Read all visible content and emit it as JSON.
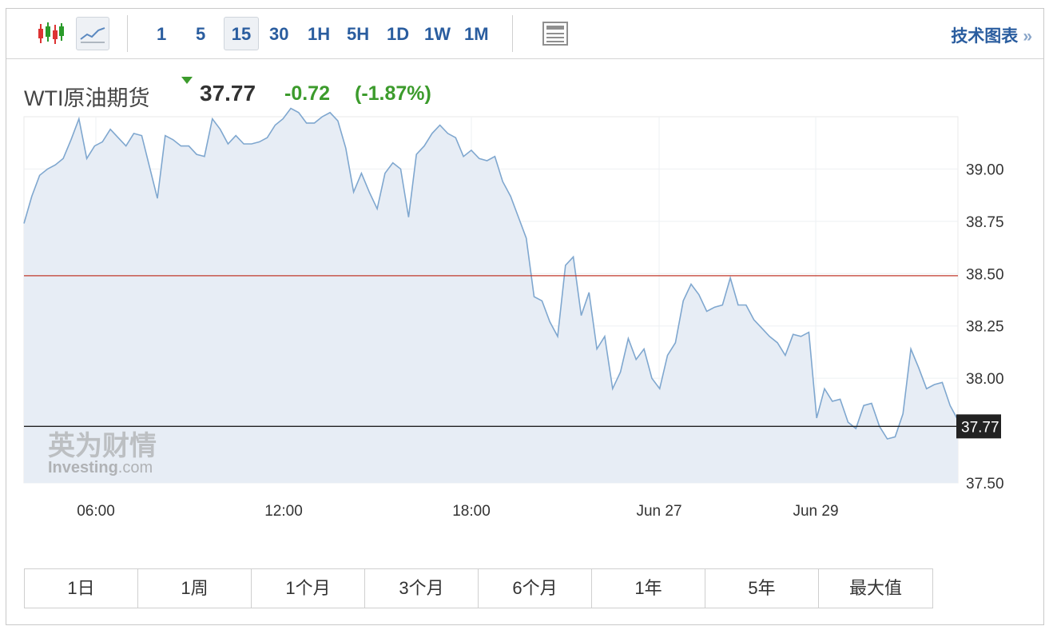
{
  "toolbar": {
    "intervals": [
      "1",
      "5",
      "15",
      "30",
      "1H",
      "5H",
      "1D",
      "1W",
      "1M"
    ],
    "selected_interval": "15",
    "tech_chart_label": "技术图表",
    "tech_chart_arrow": "»"
  },
  "quote": {
    "name": "WTI原油期货",
    "price": "37.77",
    "change": "-0.72",
    "change_pct": "(-1.87%)",
    "trend_icon": "down-triangle",
    "change_color": "#3c9b2c",
    "trend_color": "#3c9b2c"
  },
  "watermark": {
    "cn": "英为财情",
    "en_prefix": "Investing",
    "en_suffix": ".com"
  },
  "chart_data": {
    "type": "area",
    "x_ticks": [
      "06:00",
      "12:00",
      "18:00",
      "Jun 27",
      "Jun 29"
    ],
    "y_ticks": [
      "39.00",
      "38.75",
      "38.50",
      "38.25",
      "38.00",
      "37.50"
    ],
    "ylim": [
      37.5,
      39.25
    ],
    "reference_line": 38.49,
    "current_value_label": "37.77",
    "current_value": 37.77,
    "line_color": "#7fa7cf",
    "fill_color": "#e7edf5",
    "reference_color": "#c0392b",
    "values": [
      38.74,
      38.87,
      38.97,
      39.0,
      39.02,
      39.05,
      39.14,
      39.24,
      39.05,
      39.11,
      39.13,
      39.19,
      39.15,
      39.11,
      39.17,
      39.16,
      39.01,
      38.86,
      39.16,
      39.14,
      39.11,
      39.11,
      39.07,
      39.06,
      39.24,
      39.19,
      39.12,
      39.16,
      39.12,
      39.12,
      39.13,
      39.15,
      39.21,
      39.24,
      39.29,
      39.27,
      39.22,
      39.22,
      39.25,
      39.27,
      39.23,
      39.1,
      38.89,
      38.98,
      38.89,
      38.81,
      38.98,
      39.03,
      39.0,
      38.77,
      39.07,
      39.11,
      39.17,
      39.21,
      39.17,
      39.15,
      39.06,
      39.09,
      39.05,
      39.04,
      39.06,
      38.94,
      38.87,
      38.77,
      38.67,
      38.39,
      38.37,
      38.27,
      38.2,
      38.54,
      38.58,
      38.3,
      38.41,
      38.14,
      38.2,
      37.95,
      38.03,
      38.19,
      38.09,
      38.14,
      38.0,
      37.95,
      38.11,
      38.17,
      38.37,
      38.45,
      38.4,
      38.32,
      38.34,
      38.35,
      38.48,
      38.35,
      38.35,
      38.28,
      38.24,
      38.2,
      38.17,
      38.11,
      38.21,
      38.2,
      38.22,
      37.81,
      37.95,
      37.89,
      37.9,
      37.79,
      37.76,
      37.87,
      37.88,
      37.77,
      37.71,
      37.72,
      37.83,
      38.14,
      38.05,
      37.95,
      37.97,
      37.98,
      37.87,
      37.8
    ]
  },
  "ranges": [
    "1日",
    "1周",
    "1个月",
    "3个月",
    "6个月",
    "1年",
    "5年",
    "最大值"
  ]
}
